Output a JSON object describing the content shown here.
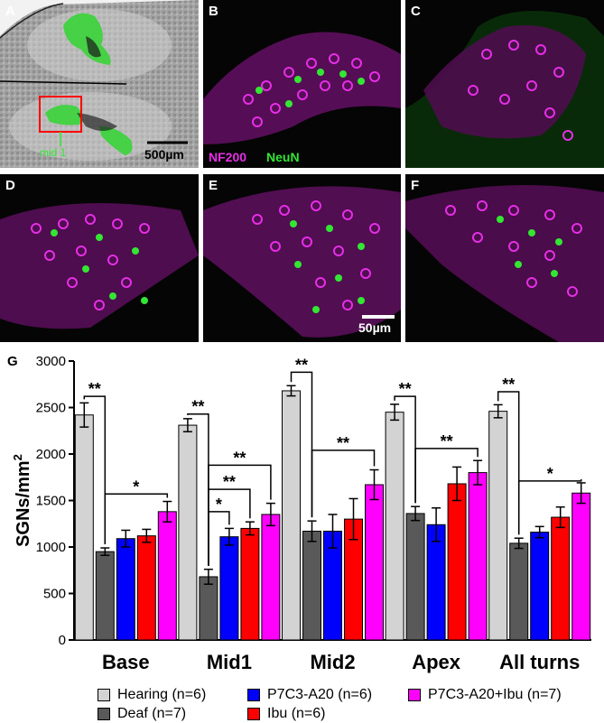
{
  "panels": {
    "A": {
      "label": "A",
      "annotation": "mid 1",
      "scale_label": "500µm"
    },
    "B": {
      "label": "B",
      "stain_1": "NF200",
      "stain_2": "NeuN"
    },
    "C": {
      "label": "C"
    },
    "D": {
      "label": "D"
    },
    "E": {
      "label": "E"
    },
    "F": {
      "label": "F",
      "scale_label": "50µm"
    }
  },
  "colors": {
    "hearing": "#d3d3d3",
    "deaf": "#595959",
    "p7c3": "#0000ff",
    "ibu": "#ff0000",
    "combo": "#ff00ff",
    "nf200": "#e62ee6",
    "neun": "#33e633"
  },
  "chart_data": {
    "type": "bar",
    "panel_label": "G",
    "ylabel": "SGNs/mm",
    "ylabel_superscript": "2",
    "ylim": [
      0,
      3000
    ],
    "yticks": [
      "0",
      "500",
      "1000",
      "1500",
      "2000",
      "2500",
      "3000"
    ],
    "categories": [
      "Base",
      "Mid1",
      "Mid2",
      "Apex",
      "All turns"
    ],
    "series": [
      {
        "name": "Hearing (n=6)",
        "color": "#d3d3d3",
        "values": [
          2420,
          2310,
          2680,
          2450,
          2460
        ],
        "errors": [
          130,
          70,
          55,
          85,
          70
        ]
      },
      {
        "name": "Deaf (n=7)",
        "color": "#595959",
        "values": [
          950,
          680,
          1170,
          1360,
          1040
        ],
        "errors": [
          40,
          80,
          110,
          75,
          55
        ]
      },
      {
        "name": "P7C3-A20 (n=6)",
        "color": "#0000ff",
        "values": [
          1090,
          1110,
          1170,
          1240,
          1160
        ],
        "errors": [
          90,
          90,
          180,
          180,
          60
        ]
      },
      {
        "name": "Ibu (n=6)",
        "color": "#ff0000",
        "values": [
          1120,
          1200,
          1300,
          1680,
          1320
        ],
        "errors": [
          70,
          70,
          220,
          180,
          110
        ]
      },
      {
        "name": "P7C3-A20+Ibu (n=7)",
        "color": "#ff00ff",
        "values": [
          1380,
          1350,
          1670,
          1800,
          1580
        ],
        "errors": [
          110,
          120,
          160,
          130,
          110
        ]
      }
    ],
    "significance": [
      {
        "group": 0,
        "from": 0,
        "to": 1,
        "label": "**",
        "y": 2620
      },
      {
        "group": 0,
        "from": 1,
        "to": 4,
        "label": "*",
        "y": 1570
      },
      {
        "group": 1,
        "from": 0,
        "to": 1,
        "label": "**",
        "y": 2430
      },
      {
        "group": 1,
        "from": 1,
        "to": 2,
        "label": "*",
        "y": 1380
      },
      {
        "group": 1,
        "from": 1,
        "to": 3,
        "label": "**",
        "y": 1620
      },
      {
        "group": 1,
        "from": 1,
        "to": 4,
        "label": "**",
        "y": 1880
      },
      {
        "group": 2,
        "from": 0,
        "to": 1,
        "label": "**",
        "y": 2880
      },
      {
        "group": 2,
        "from": 1,
        "to": 4,
        "label": "**",
        "y": 2040
      },
      {
        "group": 3,
        "from": 0,
        "to": 1,
        "label": "**",
        "y": 2620
      },
      {
        "group": 3,
        "from": 1,
        "to": 4,
        "label": "**",
        "y": 2060
      },
      {
        "group": 4,
        "from": 0,
        "to": 1,
        "label": "**",
        "y": 2670
      },
      {
        "group": 4,
        "from": 1,
        "to": 4,
        "label": "*",
        "y": 1710
      }
    ]
  }
}
